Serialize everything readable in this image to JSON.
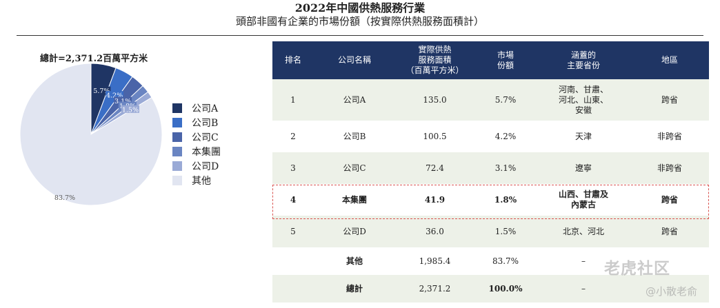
{
  "title": {
    "line1": "2022年中國供熱服務行業",
    "line2": "頭部非國有企業的市場份額（按實際供熱服務面積計）"
  },
  "total_label": "總計=2,371.2百萬平方米",
  "chart_data": {
    "type": "pie",
    "categories": [
      "公司A",
      "公司B",
      "公司C",
      "本集團",
      "公司D",
      "其他"
    ],
    "values": [
      5.7,
      4.2,
      3.1,
      1.8,
      1.5,
      83.7
    ],
    "labels": [
      "5.7%",
      "4.2%",
      "3.1%",
      "1.8%",
      "1.5%",
      "83.7%"
    ],
    "colors": [
      "#1f3564",
      "#3a6ec6",
      "#4a64a8",
      "#6a85c2",
      "#9aaad6",
      "#e1e5f1"
    ],
    "legend_position": "right"
  },
  "table": {
    "headers": [
      "排名",
      "公司名稱",
      "實際供熱\n服務面積\n（百萬平方米）",
      "市場\n份額",
      "涵蓋的\n主要省份",
      "地區"
    ],
    "rows": [
      [
        "1",
        "公司A",
        "135.0",
        "5.7%",
        "河南、甘肅、\n河北、山東、\n安徽",
        "跨省"
      ],
      [
        "2",
        "公司B",
        "100.5",
        "4.2%",
        "天津",
        "非跨省"
      ],
      [
        "3",
        "公司C",
        "72.4",
        "3.1%",
        "遼寧",
        "非跨省"
      ],
      [
        "4",
        "本集團",
        "41.9",
        "1.8%",
        "山西、甘肅及\n內蒙古",
        "跨省"
      ],
      [
        "5",
        "公司D",
        "36.0",
        "1.5%",
        "北京、河北",
        "跨省"
      ],
      [
        "",
        "其他",
        "1,985.4",
        "83.7%",
        "–",
        ""
      ],
      [
        "",
        "總計",
        "2,371.2",
        "100.0%",
        "–",
        ""
      ]
    ]
  },
  "watermarks": {
    "site": "老虎社区",
    "author": "@小散老俞"
  }
}
